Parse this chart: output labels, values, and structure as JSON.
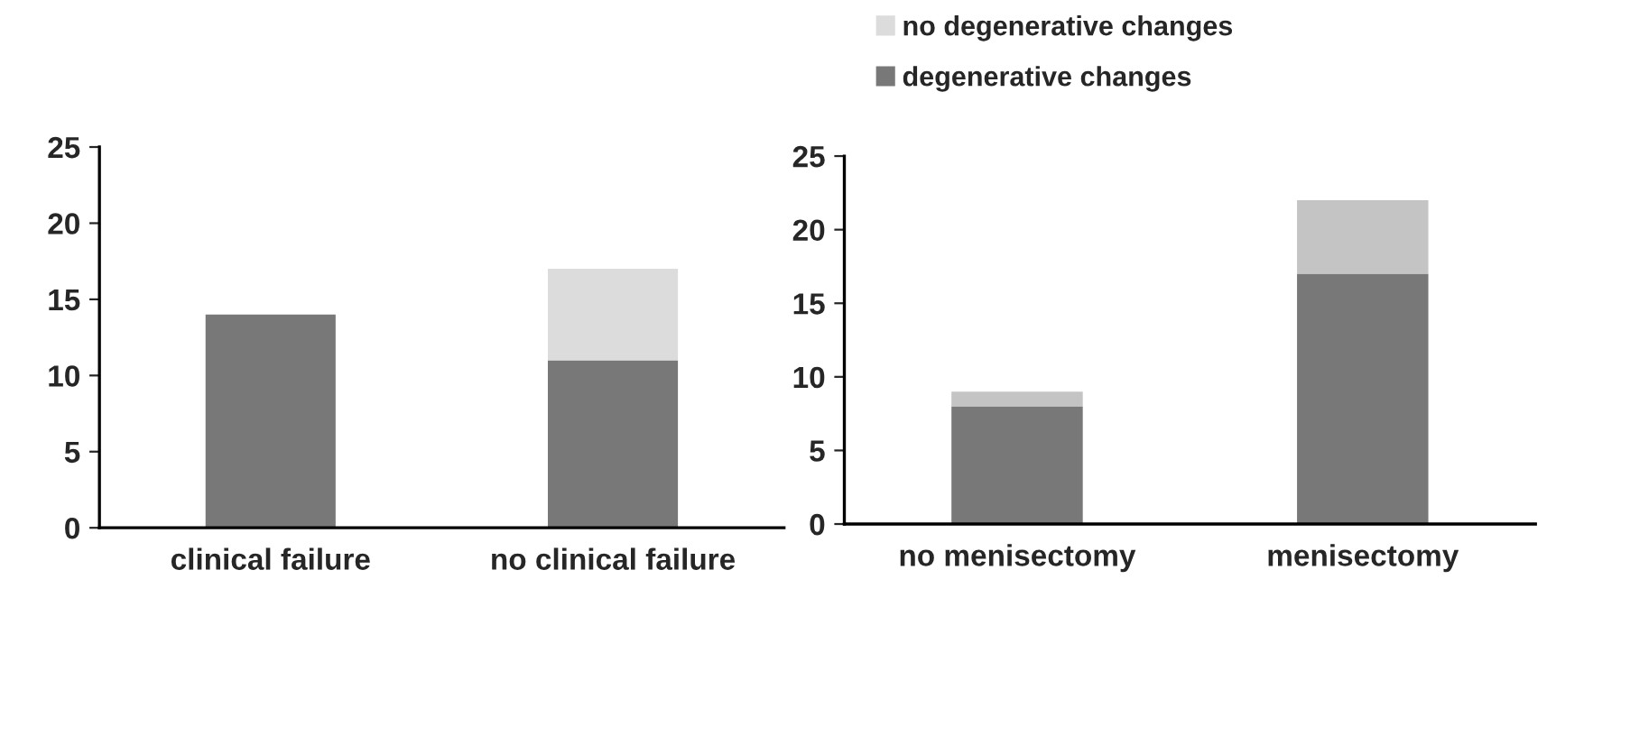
{
  "chart_data": [
    {
      "type": "bar",
      "stacked": true,
      "categories": [
        "clinical failure",
        "no clinical failure"
      ],
      "series": [
        {
          "name": "degenerative changes",
          "color": "#787878",
          "values": [
            14,
            11
          ]
        },
        {
          "name": "no degenerative changes",
          "color": "#dcdcdc",
          "values": [
            0,
            6
          ]
        }
      ],
      "ylim": [
        0,
        25
      ],
      "yticks": [
        0,
        5,
        10,
        15,
        20,
        25
      ],
      "grid": false,
      "legend": "top right"
    },
    {
      "type": "bar",
      "stacked": true,
      "categories": [
        "no menisectomy",
        "menisectomy"
      ],
      "series": [
        {
          "color": "#787878",
          "values": [
            8,
            17
          ]
        },
        {
          "color": "#c4c4c4",
          "values": [
            1,
            5
          ]
        }
      ],
      "ylim": [
        0,
        25
      ],
      "yticks": [
        0,
        5,
        10,
        15,
        20,
        25
      ],
      "grid": false
    }
  ]
}
